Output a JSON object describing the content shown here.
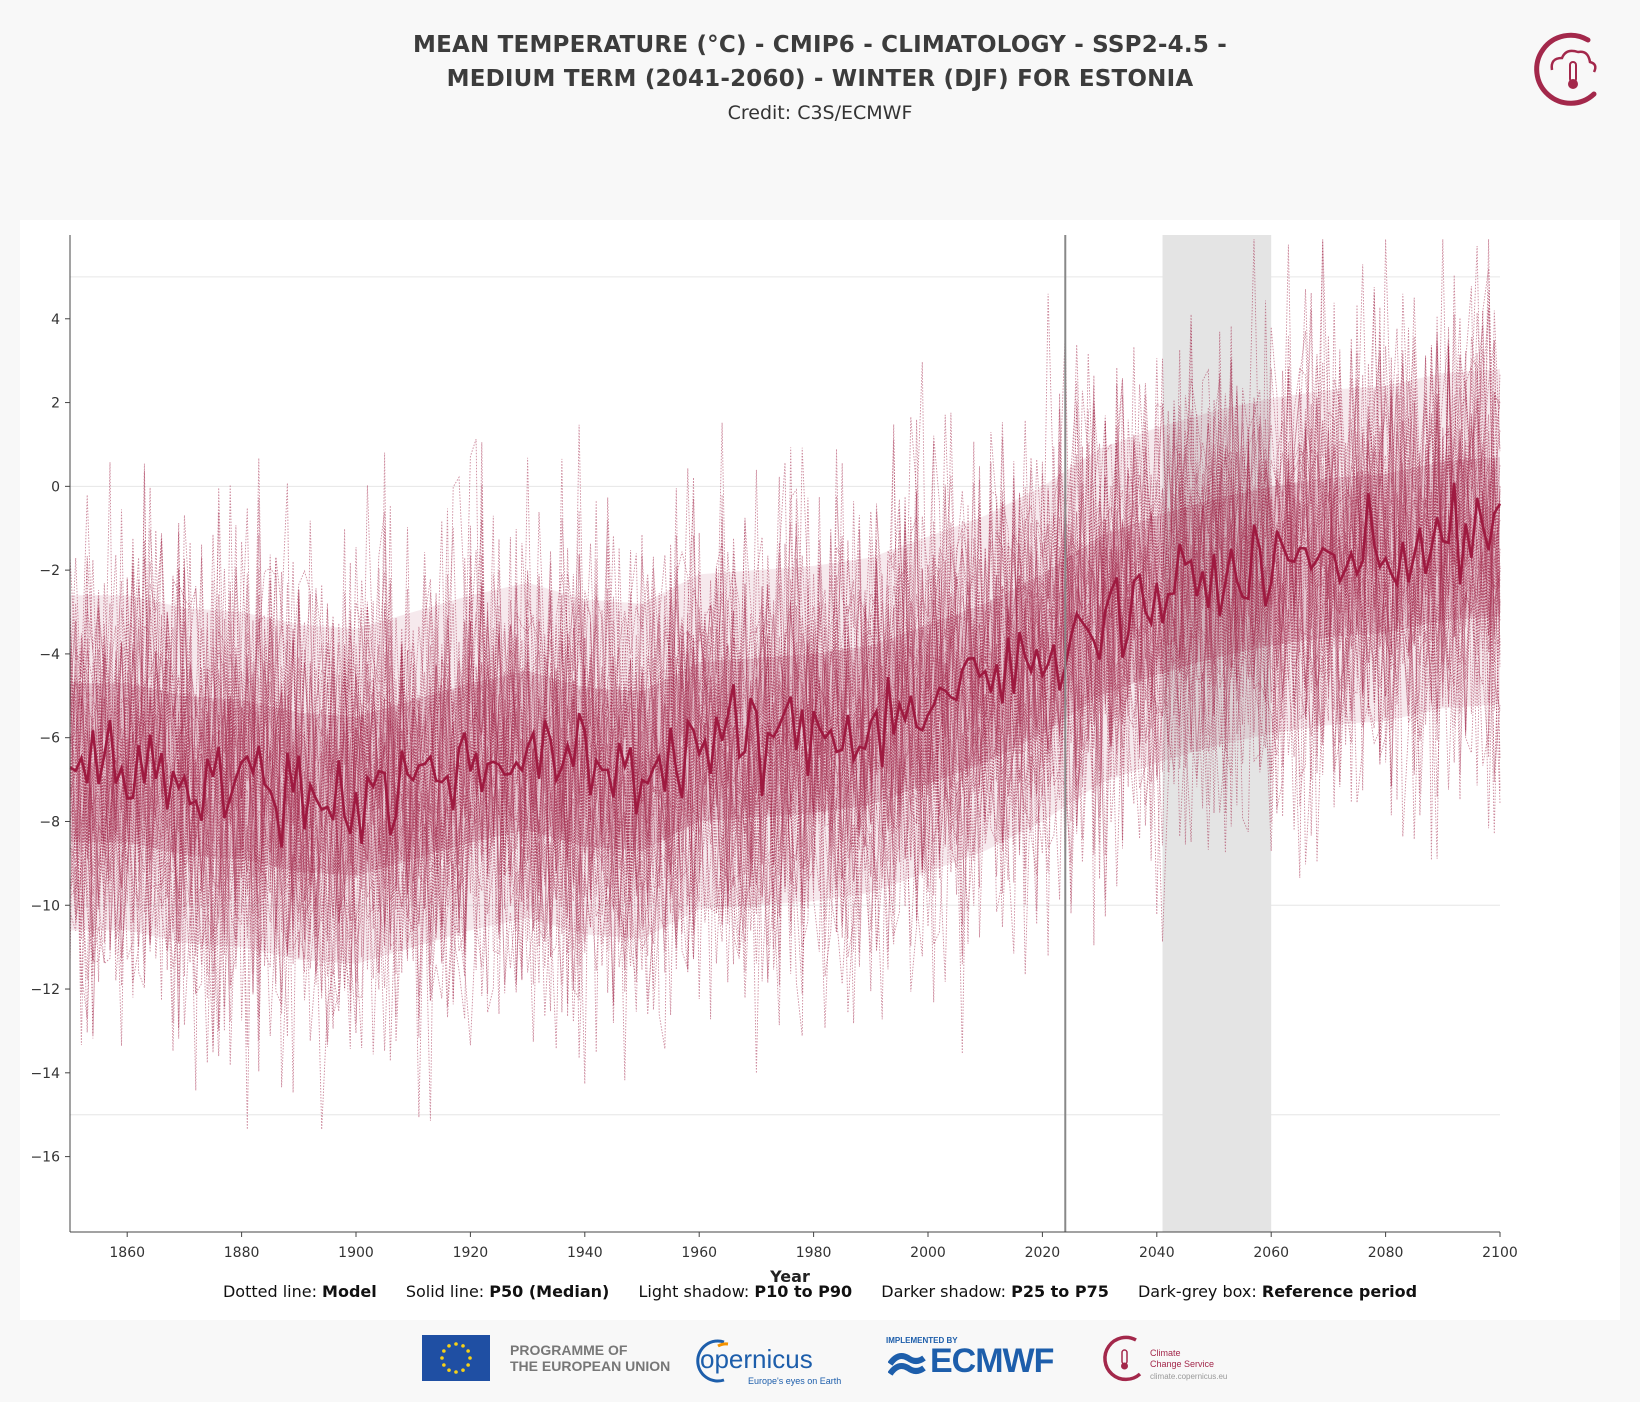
{
  "header": {
    "title_line1": "MEAN TEMPERATURE (°C) - CMIP6 - CLIMATOLOGY - SSP2-4.5 -",
    "title_line2": "MEDIUM TERM (2041-2060) - WINTER (DJF) FOR ESTONIA",
    "credit": "Credit: C3S/ECMWF"
  },
  "legend": {
    "items": [
      {
        "label": "Dotted line: ",
        "value": "Model"
      },
      {
        "label": "Solid line: ",
        "value": "P50 (Median)"
      },
      {
        "label": "Light shadow: ",
        "value": "P10 to P90"
      },
      {
        "label": "Darker shadow: ",
        "value": "P25 to P75"
      },
      {
        "label": "Dark-grey box: ",
        "value": "Reference period"
      }
    ]
  },
  "footer": {
    "programme": "PROGRAMME OF",
    "programme2": "THE EUROPEAN UNION",
    "copernicus": "opernicus",
    "copernicus_sub": "Europe's eyes on Earth",
    "implemented": "IMPLEMENTED BY",
    "ecmwf": "ECMWF",
    "ccs1": "Climate",
    "ccs2": "Change Service",
    "ccs_url": "climate.copernicus.eu"
  },
  "colors": {
    "series": "#a3284b",
    "median": "#9e1a40",
    "reference_box": "#e4e4e4",
    "now_line": "#888888",
    "grid": "#e6e6e6",
    "axis": "#444444"
  },
  "chart_data": {
    "type": "line",
    "title": "MEAN TEMPERATURE (°C) - CMIP6 - CLIMATOLOGY - SSP2-4.5 - MEDIUM TERM (2041-2060) - WINTER (DJF) FOR ESTONIA",
    "xlabel": "Year",
    "ylabel": "",
    "xlim": [
      1850,
      2100
    ],
    "ylim": [
      -17.8,
      6
    ],
    "xticks": [
      1860,
      1880,
      1900,
      1920,
      1940,
      1960,
      1980,
      2000,
      2020,
      2040,
      2060,
      2080,
      2100
    ],
    "yticks": [
      -16,
      -14,
      -12,
      -10,
      -8,
      -6,
      -4,
      -2,
      0,
      2,
      4
    ],
    "grid_lines_y": [
      -15,
      -10,
      0,
      5
    ],
    "reference_period": [
      2041,
      2060
    ],
    "current_year_line": 2024,
    "model_count": 35,
    "spread": {
      "p10_p90_halfwidth": 4.0,
      "p25_p75_halfwidth": 1.9,
      "model_noise_sd": 2.6
    },
    "median_trend": {
      "x": [
        1850,
        1860,
        1870,
        1880,
        1890,
        1900,
        1910,
        1920,
        1930,
        1940,
        1950,
        1960,
        1970,
        1980,
        1990,
        2000,
        2010,
        2020,
        2030,
        2040,
        2050,
        2060,
        2070,
        2080,
        2090,
        2100
      ],
      "y": [
        -6.6,
        -6.6,
        -6.9,
        -7.0,
        -7.3,
        -7.4,
        -7.0,
        -6.6,
        -6.3,
        -6.7,
        -6.8,
        -6.1,
        -6.0,
        -5.9,
        -5.7,
        -5.2,
        -4.7,
        -4.0,
        -3.1,
        -2.6,
        -2.2,
        -1.9,
        -1.7,
        -1.6,
        -1.3,
        -1.2
      ]
    }
  }
}
